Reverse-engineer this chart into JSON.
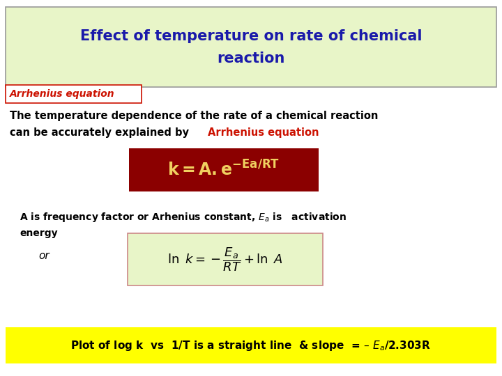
{
  "title_line1": "Effect of temperature on rate of chemical",
  "title_line2": "reaction",
  "title_color": "#1a1aaa",
  "title_bg_color": "#e8f5c8",
  "title_border_color": "#999999",
  "subtitle": "Arrhenius equation",
  "subtitle_color": "#cc1100",
  "subtitle_border_color": "#cc1100",
  "body_line1": "The temperature dependence of the rate of a chemical reaction",
  "body_line2_pre": "can be accurately explained by ",
  "body_line2_highlight": "Arrhenius equation",
  "body_color": "#000000",
  "body_highlight_color": "#cc1100",
  "eq1_bg_color": "#8b0000",
  "eq1_text_color": "#f0d060",
  "desc_line1": "A is frequency factor or Arhenius constant, E",
  "desc_line1b": " is   activation",
  "desc_line2": "energy",
  "desc_color": "#000000",
  "or_text": "or",
  "eq2_bg_color": "#e8f5c8",
  "eq2_border_color": "#cc8888",
  "eq2_text_color": "#000000",
  "footer_bg_color": "#ffff00",
  "footer_text_color": "#000000",
  "bg_color": "#ffffff"
}
